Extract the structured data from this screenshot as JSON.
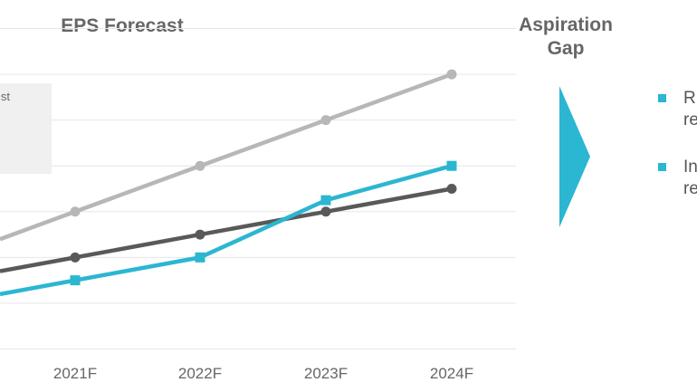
{
  "title": "EPS Forecast",
  "aspiration_gap": {
    "line1": "Aspiration",
    "line2": "Gap"
  },
  "legend_fragment": "st",
  "bullets": [
    {
      "line1": "R",
      "line2": "re"
    },
    {
      "line1": "In",
      "line2": "re"
    }
  ],
  "colors": {
    "series_light_gray": "#b7b7b7",
    "series_dark_gray": "#595959",
    "series_cyan": "#2bb6d2",
    "arrow": "#2bb6d2",
    "gridline": "#e6e6e6"
  },
  "chart_data": {
    "type": "line",
    "title": "EPS Forecast",
    "xlabel": "",
    "ylabel": "",
    "categories": [
      "2021F",
      "2022F",
      "2023F",
      "2024F"
    ],
    "ylim": [
      0,
      7
    ],
    "grid": true,
    "series": [
      {
        "values": [
          3,
          4,
          5,
          6
        ],
        "color": "#b7b7b7",
        "marker": "circle"
      },
      {
        "values": [
          2,
          2.5,
          3,
          3.5
        ],
        "color": "#595959",
        "marker": "circle"
      },
      {
        "values": [
          1.5,
          2,
          3.25,
          4
        ],
        "color": "#2bb6d2",
        "marker": "square"
      }
    ]
  }
}
